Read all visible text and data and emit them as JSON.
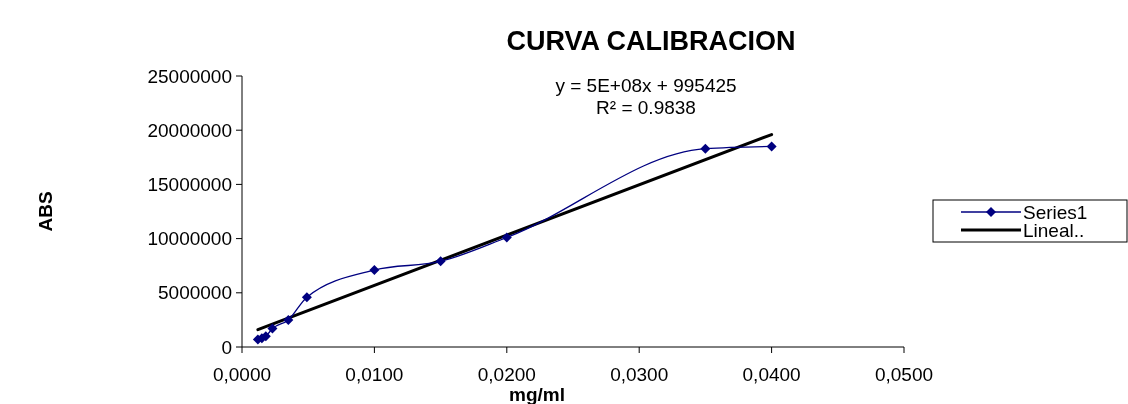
{
  "chart_data": {
    "type": "line",
    "title": "CURVA CALIBRACION",
    "xlabel": "mg/ml",
    "ylabel": "ABS",
    "xlim": [
      0,
      0.05
    ],
    "xticks": [
      {
        "value": 0,
        "label": "0,0000"
      },
      {
        "value": 0.01,
        "label": "0,0100"
      },
      {
        "value": 0.02,
        "label": "0,0200"
      },
      {
        "value": 0.03,
        "label": "0,0300"
      },
      {
        "value": 0.04,
        "label": "0,0400"
      },
      {
        "value": 0.05,
        "label": "0,0500"
      }
    ],
    "ylim": [
      0,
      25000000
    ],
    "yticks": [
      0,
      5000000,
      10000000,
      15000000,
      20000000,
      25000000
    ],
    "annotations": [
      "y = 5E+08x + 995425",
      "R² = 0.9838"
    ],
    "legend": "right",
    "grid": false,
    "series": [
      {
        "name": "Series1",
        "color": "#000080",
        "marker": "diamond",
        "x": [
          0.0012,
          0.0015,
          0.0018,
          0.0023,
          0.0035,
          0.0049,
          0.01,
          0.015,
          0.02,
          0.035,
          0.04
        ],
        "values": [
          700000,
          800000,
          1000000,
          1700000,
          2500000,
          4600000,
          7100000,
          7900000,
          10100000,
          18300000,
          18500000
        ]
      },
      {
        "name": "Lineal..",
        "color": "#000000",
        "marker": "none",
        "x": [
          0.0012,
          0.04
        ],
        "values": [
          1600000,
          19600000
        ]
      }
    ]
  }
}
